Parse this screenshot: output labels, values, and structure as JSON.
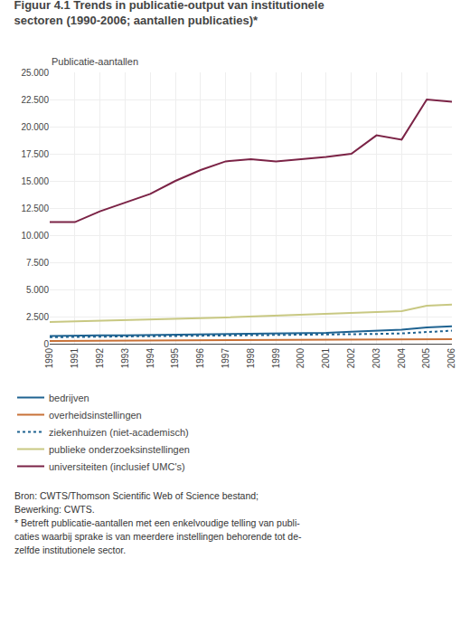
{
  "chart_data": {
    "type": "line",
    "title": "Figuur 4.1 Trends in publicatie-output van institutionele",
    "subtitle": "sectoren (1990-2006; aantallen publicaties)*",
    "y_label": "Publicatie-aantallen",
    "x": [
      1990,
      1991,
      1992,
      1993,
      1994,
      1995,
      1996,
      1997,
      1998,
      1999,
      2000,
      2001,
      2002,
      2003,
      2004,
      2005,
      2006
    ],
    "series": [
      {
        "name": "bedrijven",
        "color": "#1f6391",
        "line_style": "solid",
        "values": [
          700,
          750,
          780,
          780,
          800,
          820,
          840,
          860,
          880,
          900,
          950,
          1000,
          1100,
          1200,
          1300,
          1500,
          1600
        ]
      },
      {
        "name": "overheidsinstellingen",
        "color": "#c87137",
        "line_style": "solid",
        "values": [
          250,
          260,
          270,
          270,
          280,
          290,
          300,
          310,
          320,
          330,
          340,
          350,
          360,
          380,
          380,
          400,
          420
        ]
      },
      {
        "name": "ziekenhuizen (niet-academisch)",
        "color": "#1f6391",
        "line_style": "dotted",
        "values": [
          600,
          620,
          640,
          650,
          660,
          680,
          700,
          720,
          740,
          760,
          780,
          800,
          850,
          900,
          950,
          1100,
          1200
        ]
      },
      {
        "name": "publieke onderzoeksinstellingen",
        "color": "#c8c882",
        "line_style": "solid",
        "values": [
          2000,
          2050,
          2100,
          2150,
          2200,
          2280,
          2350,
          2420,
          2500,
          2580,
          2650,
          2700,
          2800,
          2900,
          3000,
          3500,
          3600
        ]
      },
      {
        "name": "universiteiten (inclusief UMC's)",
        "color": "#7b2346",
        "line_style": "solid",
        "values": [
          11200,
          11200,
          12200,
          13000,
          13800,
          15000,
          16000,
          16800,
          17000,
          16800,
          17000,
          17200,
          17500,
          19200,
          18800,
          22500,
          22300
        ]
      }
    ],
    "xlim": [
      1990,
      2006
    ],
    "xticks": [
      1990,
      1991,
      1992,
      1993,
      1994,
      1995,
      1996,
      1997,
      1998,
      1999,
      2000,
      2001,
      2002,
      2003,
      2004,
      2005,
      2006
    ],
    "ylim": [
      0,
      25000
    ],
    "yticks": [
      0,
      {
        "value": 2500,
        "label": "2.500"
      },
      {
        "value": 5000,
        "label": "5.000"
      },
      {
        "value": 7500,
        "label": "7.500"
      },
      {
        "value": 10000,
        "label": "10.000"
      },
      {
        "value": 12500,
        "label": "12.500"
      },
      {
        "value": 15000,
        "label": "15.000"
      },
      {
        "value": 17500,
        "label": "17.500"
      },
      {
        "value": 20000,
        "label": "20.000"
      },
      {
        "value": 22500,
        "label": "22.500"
      },
      {
        "value": 25000,
        "label": "25.000"
      }
    ],
    "grid": true,
    "legend": "bottom",
    "annotations": [
      "Bron: CWTS/Thomson Scientific Web of Science bestand;",
      "Bewerking: CWTS.",
      "* Betreft publicatie-aantallen met een enkelvoudige telling van publi-",
      "caties waarbij sprake is van meerdere instellingen behorende tot de-",
      "zelfde institutionele sector."
    ]
  }
}
